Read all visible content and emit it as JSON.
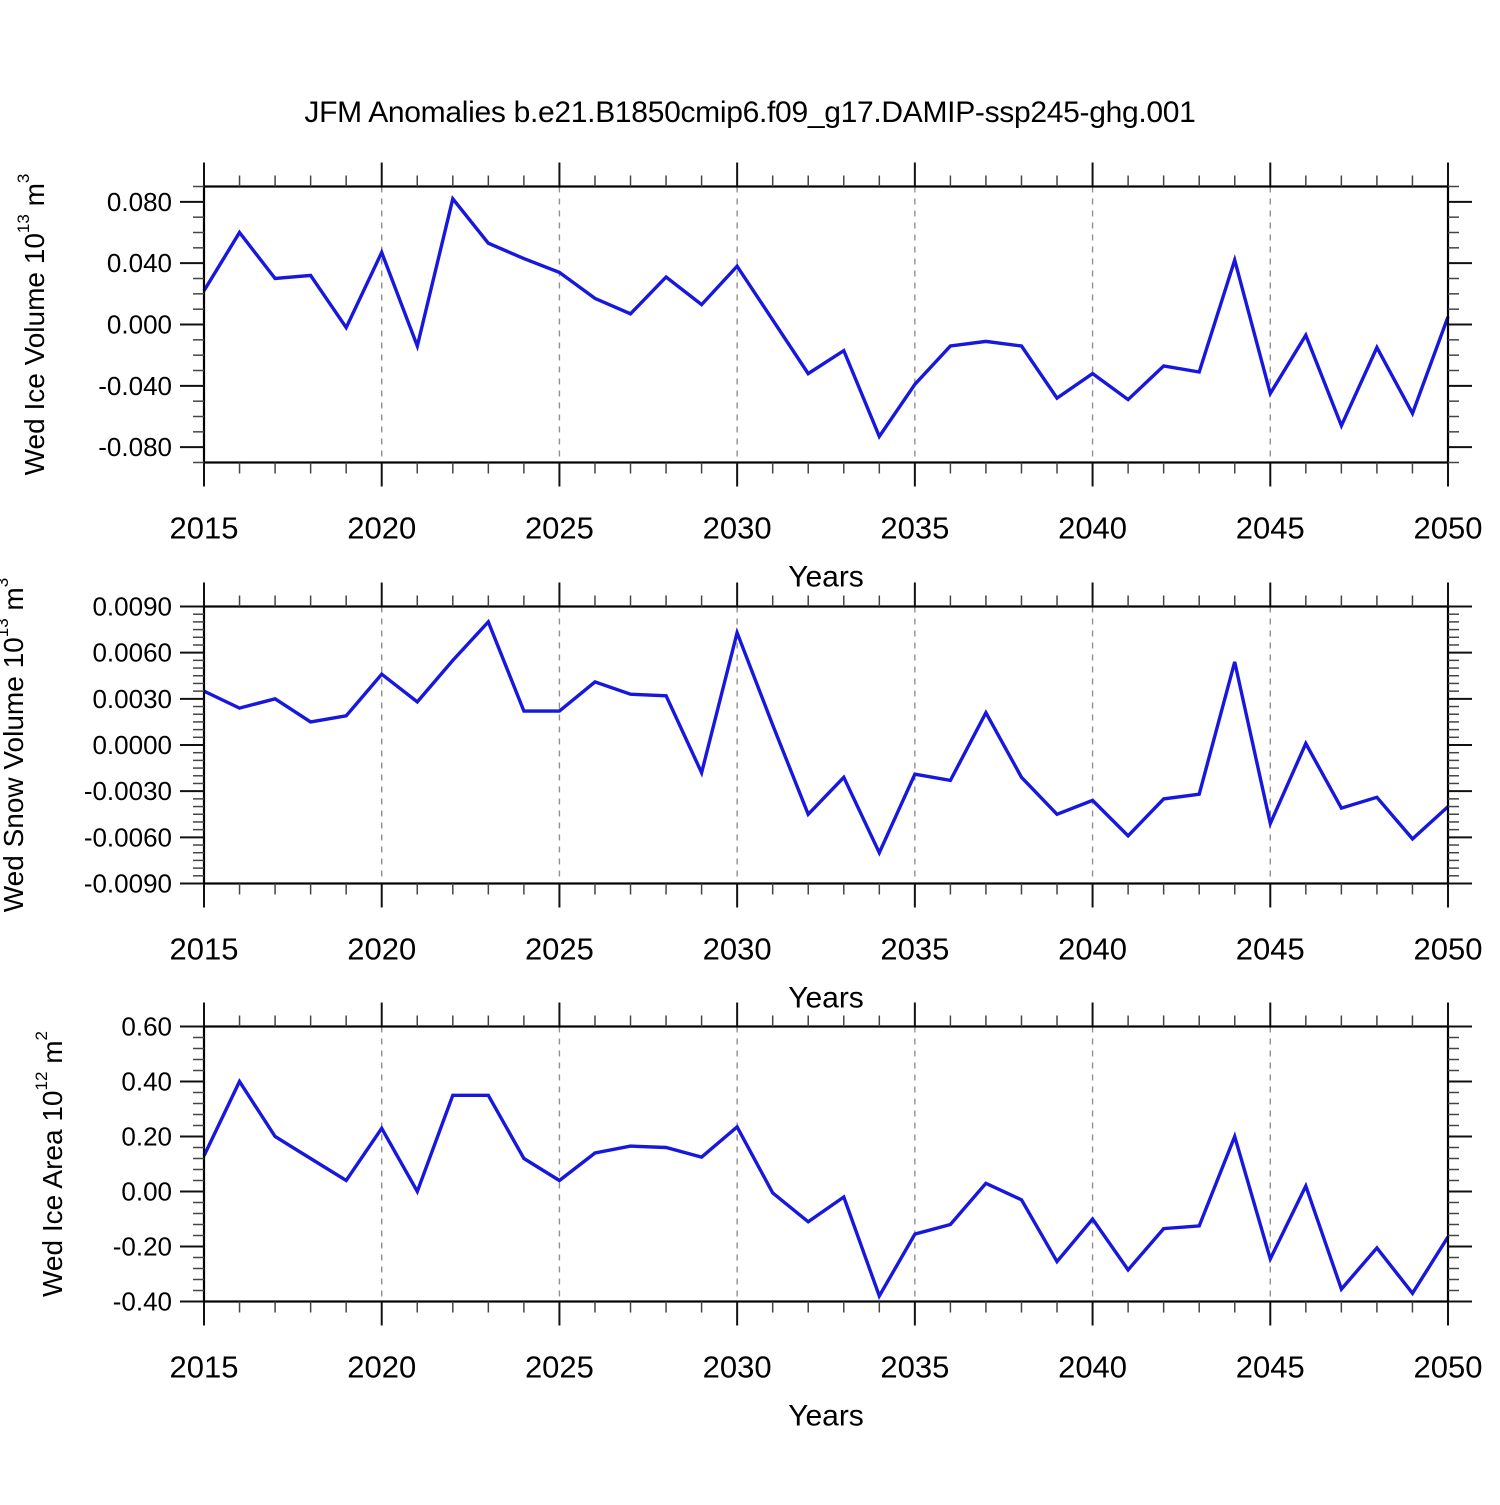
{
  "title": "JFM Anomalies b.e21.B1850cmip6.f09_g17.DAMIP-ssp245-ghg.001",
  "colors": {
    "line": "#1717dd",
    "frame": "#000000",
    "grid": "#909090",
    "major_tick": "#111111",
    "minor_tick": "#444444",
    "background": "#ffffff"
  },
  "chart_data": [
    {
      "type": "line",
      "ylabel_main": "Wed Ice Volume 10",
      "ylabel_sup": "13",
      "ylabel_unit": " m",
      "ylabel_unit_sup": "3",
      "xlabel": "Years",
      "x": [
        2015,
        2016,
        2017,
        2018,
        2019,
        2020,
        2021,
        2022,
        2023,
        2024,
        2025,
        2026,
        2027,
        2028,
        2029,
        2030,
        2031,
        2032,
        2033,
        2034,
        2035,
        2036,
        2037,
        2038,
        2039,
        2040,
        2041,
        2042,
        2043,
        2044,
        2045,
        2046,
        2047,
        2048,
        2049,
        2050
      ],
      "values": [
        0.022,
        0.06,
        0.03,
        0.032,
        -0.002,
        0.047,
        -0.014,
        0.082,
        0.053,
        0.043,
        0.034,
        0.017,
        0.007,
        0.031,
        0.013,
        0.038,
        0.003,
        -0.032,
        -0.017,
        -0.073,
        -0.039,
        -0.014,
        -0.011,
        -0.014,
        -0.048,
        -0.032,
        -0.049,
        -0.027,
        -0.031,
        0.042,
        -0.045,
        -0.007,
        -0.066,
        -0.015,
        -0.058,
        0.005
      ],
      "ylim": [
        -0.09,
        0.09
      ],
      "ymajor": [
        0.08,
        0.04,
        0.0,
        -0.04,
        -0.08
      ],
      "ymajor_labels": [
        "0.080",
        "0.040",
        "0.000",
        "-0.040",
        "-0.080"
      ],
      "yminor_step": 0.01,
      "xlim": [
        2015,
        2050
      ],
      "xmajor": [
        2015,
        2020,
        2025,
        2030,
        2035,
        2040,
        2045,
        2050
      ],
      "xmajor_labels": [
        "2015",
        "2020",
        "2025",
        "2030",
        "2035",
        "2040",
        "2045",
        "2050"
      ],
      "xminor_step": 1,
      "grid_years": [
        2020,
        2025,
        2030,
        2035,
        2040,
        2045
      ],
      "grid": "vertical-dashed",
      "legend": null
    },
    {
      "type": "line",
      "ylabel_main": "Wed Snow Volume 10",
      "ylabel_sup": "13",
      "ylabel_unit": " m",
      "ylabel_unit_sup": "3",
      "xlabel": "Years",
      "x": [
        2015,
        2016,
        2017,
        2018,
        2019,
        2020,
        2021,
        2022,
        2023,
        2024,
        2025,
        2026,
        2027,
        2028,
        2029,
        2030,
        2031,
        2032,
        2033,
        2034,
        2035,
        2036,
        2037,
        2038,
        2039,
        2040,
        2041,
        2042,
        2043,
        2044,
        2045,
        2046,
        2047,
        2048,
        2049,
        2050
      ],
      "values": [
        0.0035,
        0.0024,
        0.003,
        0.0015,
        0.0019,
        0.0046,
        0.0028,
        0.0055,
        0.008,
        0.0022,
        0.0022,
        0.0041,
        0.0033,
        0.0032,
        -0.0018,
        0.0073,
        0.0013,
        -0.0045,
        -0.0021,
        -0.007,
        -0.0019,
        -0.0023,
        0.0021,
        -0.0021,
        -0.0045,
        -0.0036,
        -0.0059,
        -0.0035,
        -0.0032,
        0.0054,
        -0.0051,
        0.0001,
        -0.0041,
        -0.0034,
        -0.0061,
        -0.004
      ],
      "ylim": [
        -0.009,
        0.009
      ],
      "ymajor": [
        0.009,
        0.006,
        0.003,
        0.0,
        -0.003,
        -0.006,
        -0.009
      ],
      "ymajor_labels": [
        "0.0090",
        "0.0060",
        "0.0030",
        "0.0000",
        "-0.0030",
        "-0.0060",
        "-0.0090"
      ],
      "yminor_step": 0.0005,
      "xlim": [
        2015,
        2050
      ],
      "xmajor": [
        2015,
        2020,
        2025,
        2030,
        2035,
        2040,
        2045,
        2050
      ],
      "xmajor_labels": [
        "2015",
        "2020",
        "2025",
        "2030",
        "2035",
        "2040",
        "2045",
        "2050"
      ],
      "xminor_step": 1,
      "grid_years": [
        2020,
        2025,
        2030,
        2035,
        2040,
        2045
      ],
      "grid": "vertical-dashed",
      "legend": null
    },
    {
      "type": "line",
      "ylabel_main": "Wed Ice Area 10",
      "ylabel_sup": "12",
      "ylabel_unit": " m",
      "ylabel_unit_sup": "2",
      "xlabel": "Years",
      "x": [
        2015,
        2016,
        2017,
        2018,
        2019,
        2020,
        2021,
        2022,
        2023,
        2024,
        2025,
        2026,
        2027,
        2028,
        2029,
        2030,
        2031,
        2032,
        2033,
        2034,
        2035,
        2036,
        2037,
        2038,
        2039,
        2040,
        2041,
        2042,
        2043,
        2044,
        2045,
        2046,
        2047,
        2048,
        2049,
        2050
      ],
      "values": [
        0.13,
        0.4,
        0.2,
        0.12,
        0.04,
        0.23,
        0.0,
        0.35,
        0.35,
        0.12,
        0.04,
        0.14,
        0.165,
        0.16,
        0.125,
        0.235,
        -0.005,
        -0.11,
        -0.02,
        -0.38,
        -0.155,
        -0.12,
        0.03,
        -0.03,
        -0.255,
        -0.1,
        -0.285,
        -0.135,
        -0.125,
        0.2,
        -0.245,
        0.02,
        -0.355,
        -0.205,
        -0.37,
        -0.165
      ],
      "ylim": [
        -0.4,
        0.6
      ],
      "ymajor": [
        0.6,
        0.4,
        0.2,
        0.0,
        -0.2,
        -0.4
      ],
      "ymajor_labels": [
        "0.60",
        "0.40",
        "0.20",
        "0.00",
        "-0.20",
        "-0.40"
      ],
      "yminor_step": 0.04,
      "xlim": [
        2015,
        2050
      ],
      "xmajor": [
        2015,
        2020,
        2025,
        2030,
        2035,
        2040,
        2045,
        2050
      ],
      "xmajor_labels": [
        "2015",
        "2020",
        "2025",
        "2030",
        "2035",
        "2040",
        "2045",
        "2050"
      ],
      "xminor_step": 1,
      "grid_years": [
        2020,
        2025,
        2030,
        2035,
        2040,
        2045
      ],
      "grid": "vertical-dashed",
      "legend": null
    }
  ]
}
